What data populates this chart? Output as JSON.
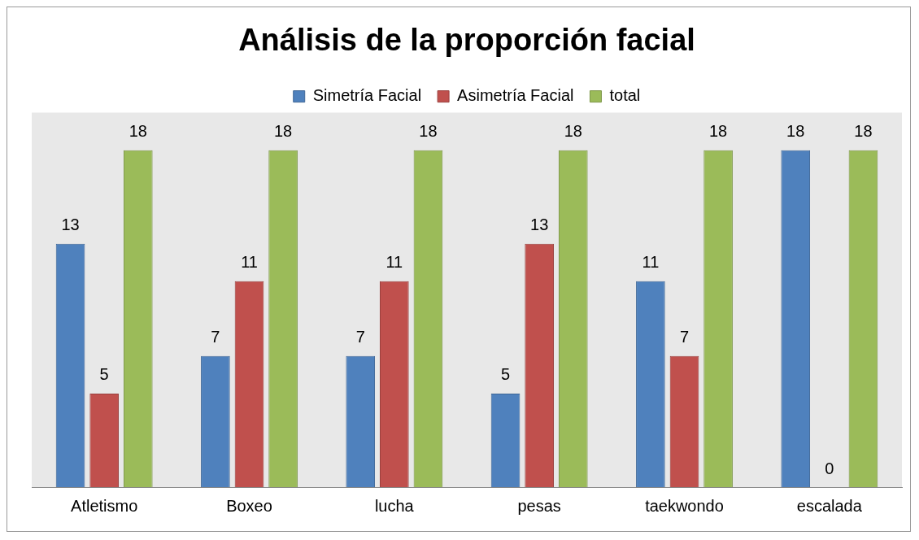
{
  "chart_data": {
    "type": "bar",
    "title": "Análisis de la proporción facial",
    "categories": [
      "Atletismo",
      "Boxeo",
      "lucha",
      "pesas",
      "taekwondo",
      "escalada"
    ],
    "series": [
      {
        "name": "Simetría Facial",
        "color": "#4f81bd",
        "values": [
          13,
          7,
          7,
          5,
          11,
          18
        ]
      },
      {
        "name": "Asimetría Facial",
        "color": "#c0504d",
        "values": [
          5,
          11,
          11,
          13,
          7,
          0
        ]
      },
      {
        "name": "total",
        "color": "#9bbb59",
        "values": [
          18,
          18,
          18,
          18,
          18,
          18
        ]
      }
    ],
    "ylim": [
      0,
      20
    ],
    "data_labels": true,
    "legend": "top",
    "grid": false
  }
}
